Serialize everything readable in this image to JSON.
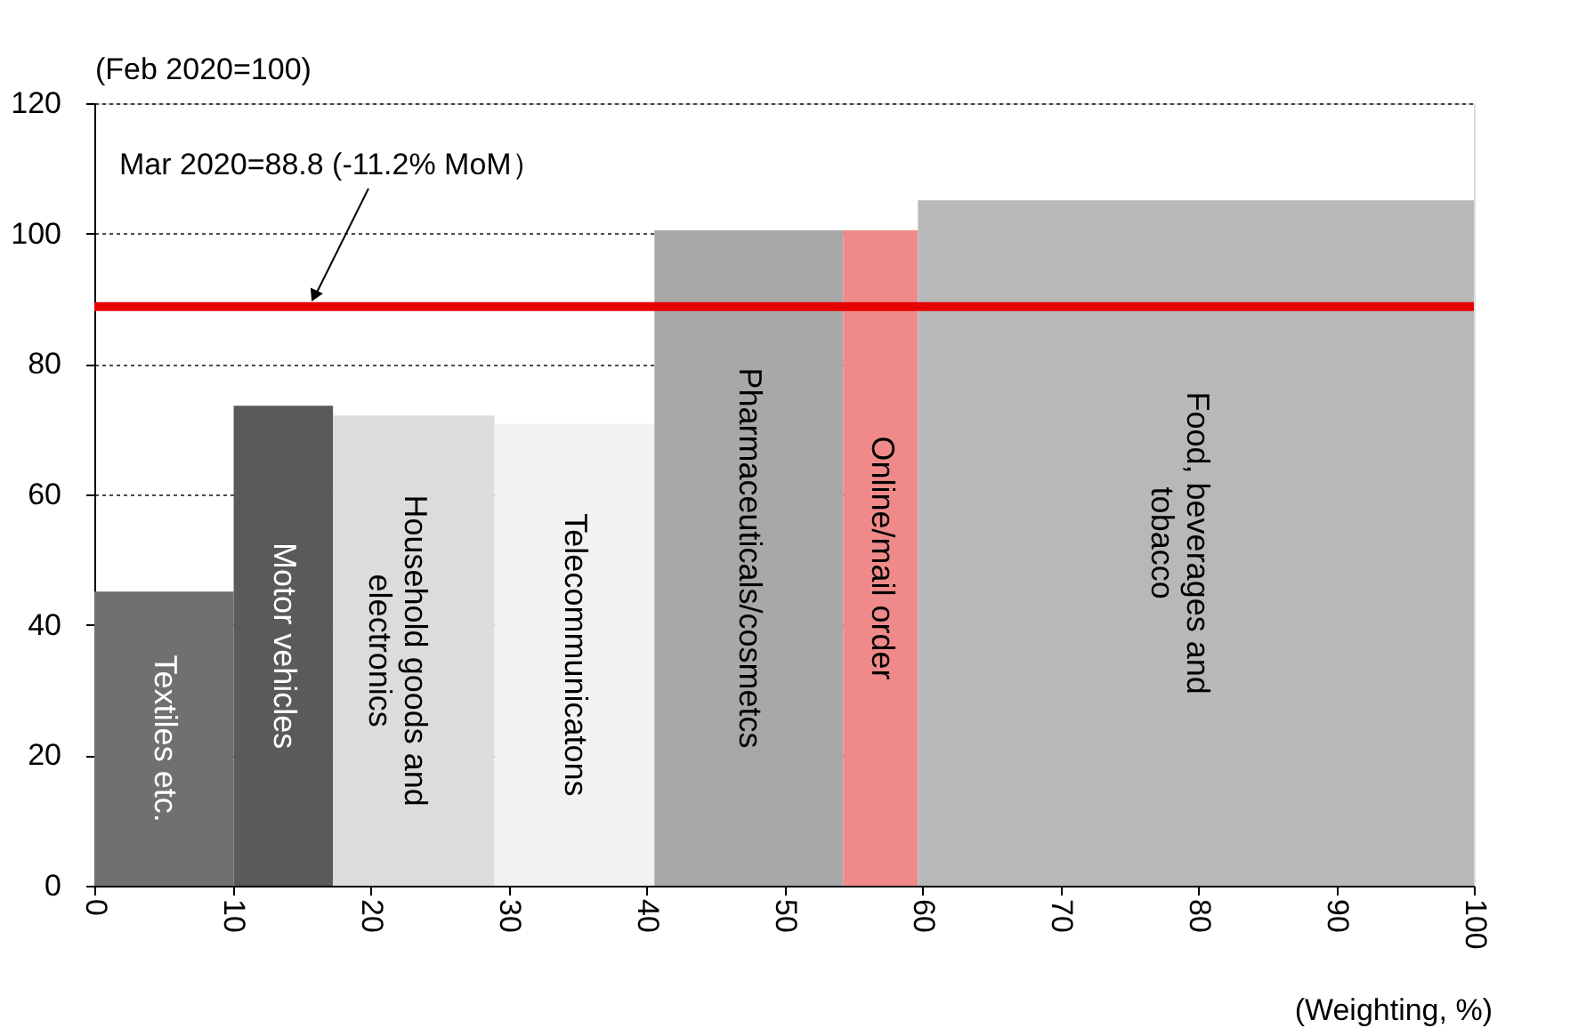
{
  "chart_data": {
    "type": "area",
    "ylabel": "(Feb 2020=100)",
    "xlabel": "(Weighting, %)",
    "series": [
      {
        "name": "Textiles etc.",
        "color": "#707070",
        "x": [
          0,
          10.1
        ],
        "values": [
          45.1,
          45.1
        ]
      },
      {
        "name": "Motor vehicles",
        "color": "#5a5a5a",
        "x": [
          10.1,
          17.3
        ],
        "values": [
          73.6,
          73.6
        ]
      },
      {
        "name": "Household goods and electronics",
        "color": "#dcdcdc",
        "x": [
          17.3,
          29.0
        ],
        "values": [
          72.1,
          72.1
        ]
      },
      {
        "name": "Telecommunicatons",
        "color": "#f2f2f2",
        "x": [
          29.0,
          40.6
        ],
        "values": [
          70.8,
          70.8
        ]
      },
      {
        "name": "Pharmaceuticals/cosmetcs",
        "color": "#a8a8a8",
        "x": [
          40.6,
          54.3
        ],
        "values": [
          100.5,
          100.5
        ]
      },
      {
        "name": "Online/mail order",
        "color": "#f08a8a",
        "x": [
          54.3,
          59.7
        ],
        "values": [
          100.5,
          100.5
        ]
      },
      {
        "name": "Food, beverages and tobacco",
        "color": "#b8b8b8",
        "x": [
          59.7,
          100
        ],
        "values": [
          105.1,
          105.1
        ]
      }
    ],
    "xlim": [
      0,
      100
    ],
    "xticks": [
      0,
      10,
      20,
      30,
      40,
      50,
      60,
      70,
      80,
      90,
      100
    ],
    "ylim": [
      0,
      120
    ],
    "yticks": [
      0,
      20,
      40,
      60,
      80,
      100,
      120
    ],
    "grid": "y",
    "legend": false,
    "ref_lines": [
      {
        "axis": "y",
        "value": 88.8,
        "color": "#e60000"
      }
    ],
    "annotations": [
      {
        "text": "Mar 2020=88.8 (-11.2% MoM）",
        "x": 16,
        "y": 88.8
      }
    ]
  }
}
